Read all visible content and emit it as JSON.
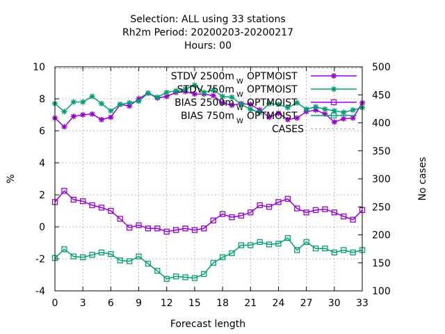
{
  "chart_data": {
    "type": "line",
    "title_lines": [
      "Selection: ALL using    33 stations",
      "Rh2m   Period: 20200203-20200217",
      "Hours:  00"
    ],
    "xlabel": "Forecast length",
    "ylabel": "%",
    "y2label": "No cases",
    "x_ticks": [
      0,
      3,
      6,
      9,
      12,
      15,
      18,
      21,
      24,
      27,
      30,
      33
    ],
    "y_ticks": [
      -4,
      -2,
      0,
      2,
      4,
      6,
      8,
      10
    ],
    "y2_ticks": [
      100,
      150,
      200,
      250,
      300,
      350,
      400,
      450,
      500
    ],
    "xlim": [
      0,
      33
    ],
    "ylim": [
      -4,
      10
    ],
    "y2lim": [
      100,
      500
    ],
    "grid": true,
    "legend_position": "top-right",
    "x": [
      0,
      1,
      2,
      3,
      4,
      5,
      6,
      7,
      8,
      9,
      10,
      11,
      12,
      13,
      14,
      15,
      16,
      17,
      18,
      19,
      20,
      21,
      22,
      23,
      24,
      25,
      26,
      27,
      28,
      29,
      30,
      31,
      32,
      33
    ],
    "series": [
      {
        "name": "STDV 2500m",
        "legend_label": "STDV 2500m",
        "legend_sub": "W",
        "legend_suffix": "OPTMOIST",
        "color": "#9400d3",
        "marker": "star",
        "axis": "y1",
        "values": [
          6.8,
          6.25,
          6.9,
          7.0,
          7.05,
          6.7,
          6.85,
          7.65,
          7.55,
          8.0,
          8.35,
          8.05,
          8.15,
          8.4,
          8.45,
          8.3,
          8.3,
          8.2,
          7.75,
          7.6,
          7.7,
          7.65,
          7.3,
          6.85,
          7.1,
          6.7,
          6.8,
          7.2,
          7.3,
          7.05,
          6.55,
          6.75,
          6.8,
          7.75
        ]
      },
      {
        "name": "STDV 750m",
        "legend_label": "STDV 750m",
        "legend_sub": "W",
        "legend_suffix": "OPTMOIST",
        "color": "#009e73",
        "marker": "star",
        "axis": "y1",
        "values": [
          7.7,
          7.2,
          7.8,
          7.8,
          8.15,
          7.7,
          7.25,
          7.65,
          7.75,
          7.85,
          8.35,
          8.1,
          8.4,
          8.5,
          8.6,
          8.85,
          8.4,
          8.55,
          8.15,
          8.1,
          7.65,
          7.35,
          7.15,
          7.7,
          7.65,
          7.45,
          7.75,
          7.35,
          7.5,
          7.35,
          7.25,
          7.15,
          7.3,
          7.45
        ]
      },
      {
        "name": "BIAS 2500m",
        "legend_label": "BIAS 2500m",
        "legend_sub": "W",
        "legend_suffix": "OPTMOIST",
        "color": "#9400d3",
        "marker": "square",
        "axis": "y1",
        "values": [
          1.55,
          2.25,
          1.7,
          1.6,
          1.35,
          1.2,
          1.0,
          0.5,
          -0.05,
          0.1,
          -0.1,
          -0.1,
          -0.3,
          -0.2,
          -0.1,
          -0.2,
          -0.1,
          0.4,
          0.8,
          0.6,
          0.7,
          0.9,
          1.35,
          1.25,
          1.55,
          1.75,
          1.15,
          0.9,
          1.05,
          1.1,
          0.9,
          0.65,
          0.45,
          1.05
        ]
      },
      {
        "name": "BIAS 750m",
        "legend_label": "BIAS 750m",
        "legend_sub": "W",
        "legend_suffix": "OPTMOIST",
        "color": "#009e73",
        "marker": "square",
        "axis": "y1",
        "values": [
          -1.95,
          -1.4,
          -1.85,
          -1.9,
          -1.75,
          -1.6,
          -1.7,
          -2.1,
          -2.15,
          -1.85,
          -2.3,
          -2.75,
          -3.25,
          -3.1,
          -3.15,
          -3.2,
          -2.95,
          -2.25,
          -1.9,
          -1.65,
          -1.15,
          -1.15,
          -0.95,
          -1.1,
          -1.05,
          -0.7,
          -1.45,
          -0.95,
          -1.35,
          -1.35,
          -1.6,
          -1.45,
          -1.6,
          -1.45
        ]
      },
      {
        "name": "CASES",
        "legend_label": "CASES",
        "color": "#a0a0a0",
        "style": "dashed",
        "axis": "y2",
        "values": [
          497,
          497,
          497,
          497,
          497,
          497,
          498,
          498,
          498,
          498,
          498,
          498,
          498,
          498,
          498,
          498,
          498,
          498,
          498,
          498,
          498,
          498,
          498,
          498,
          498,
          498,
          498,
          498,
          498,
          498,
          498,
          498,
          498,
          498
        ]
      }
    ]
  }
}
